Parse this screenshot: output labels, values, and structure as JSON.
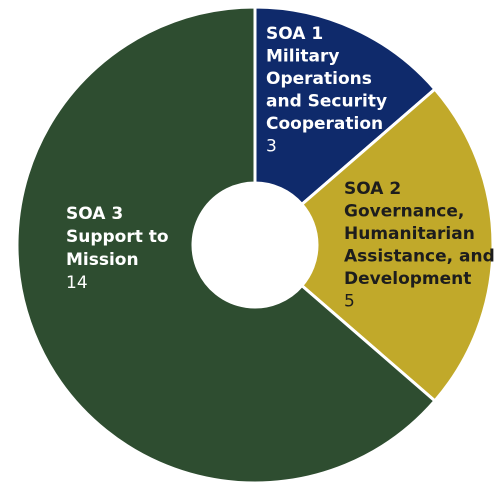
{
  "chart_data": {
    "type": "pie",
    "variant": "donut",
    "start": "top",
    "direction": "clockwise",
    "slices": [
      {
        "label_lines": [
          "SOA 1",
          "Military",
          "Operations",
          "and Security",
          "Cooperation"
        ],
        "value": 3,
        "value_text": "3",
        "color": "#0f2a6b",
        "label_color": "#ffffff",
        "value_color": "#ffffff"
      },
      {
        "label_lines": [
          "SOA 2",
          "Governance,",
          "Humanitarian",
          "Assistance, and",
          "Development"
        ],
        "value": 5,
        "value_text": "5",
        "color": "#c1a92a",
        "label_color": "#1d1d1d",
        "value_color": "#1d1d1d"
      },
      {
        "label_lines": [
          "SOA 3",
          "Support to",
          "Mission"
        ],
        "value": 14,
        "value_text": "14",
        "color": "#2e4d30",
        "label_color": "#ffffff",
        "value_color": "#ffffff"
      }
    ]
  }
}
